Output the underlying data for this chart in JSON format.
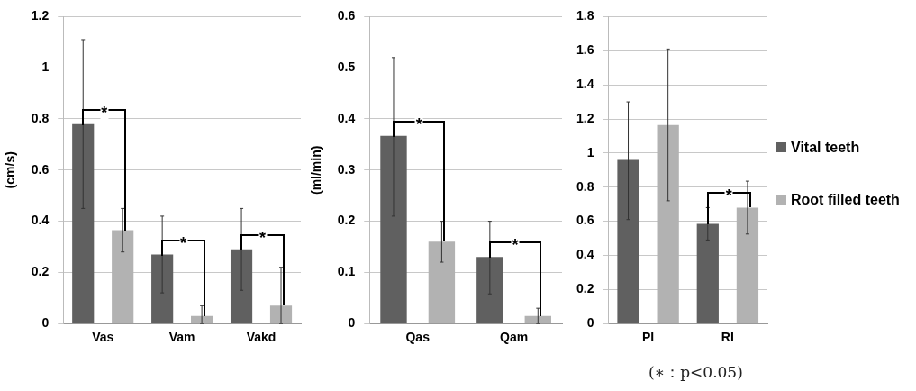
{
  "chart_data": [
    {
      "type": "bar",
      "ylabel": "(cm/s)",
      "categories": [
        "Vas",
        "Vam",
        "Vakd"
      ],
      "ylim": [
        0,
        1.2
      ],
      "yticks": [
        0,
        0.2,
        0.4,
        0.6,
        0.8,
        1,
        1.2
      ],
      "grid": "y",
      "legend": false,
      "series": [
        {
          "color": "#606060",
          "values": [
            0.78,
            0.27,
            0.29
          ],
          "errors": [
            [
              0.45,
              1.11
            ],
            [
              0.12,
              0.42
            ],
            [
              0.13,
              0.45
            ]
          ]
        },
        {
          "color": "#b2b2b2",
          "values": [
            0.365,
            0.03,
            0.07
          ],
          "errors": [
            [
              0.28,
              0.45
            ],
            [
              0,
              0.07
            ],
            [
              0,
              0.22
            ]
          ]
        }
      ],
      "annotations": [
        {
          "text": "*",
          "x": "Vas"
        },
        {
          "text": "*",
          "x": "Vam"
        },
        {
          "text": "*",
          "x": "Vakd"
        }
      ]
    },
    {
      "type": "bar",
      "ylabel": "(ml/min)",
      "categories": [
        "Qas",
        "Qam"
      ],
      "ylim": [
        0,
        0.6
      ],
      "yticks": [
        0,
        0.1,
        0.2,
        0.3,
        0.4,
        0.5,
        0.6
      ],
      "grid": "y",
      "legend": false,
      "series": [
        {
          "color": "#606060",
          "values": [
            0.367,
            0.13
          ],
          "errors": [
            [
              0.21,
              0.52
            ],
            [
              0.058,
              0.2
            ]
          ]
        },
        {
          "color": "#b2b2b2",
          "values": [
            0.16,
            0.015
          ],
          "errors": [
            [
              0.12,
              0.2
            ],
            [
              0,
              0.03
            ]
          ]
        }
      ],
      "annotations": [
        {
          "text": "*",
          "x": "Qas"
        },
        {
          "text": "*",
          "x": "Qam"
        }
      ]
    },
    {
      "type": "bar",
      "categories": [
        "PI",
        "RI"
      ],
      "ylim": [
        0,
        1.8
      ],
      "yticks": [
        0,
        0.2,
        0.4,
        0.6,
        0.8,
        1,
        1.2,
        1.4,
        1.6,
        1.8
      ],
      "grid": "y",
      "legend": "right",
      "series": [
        {
          "name": "Vital teeth",
          "color": "#606060",
          "values": [
            0.96,
            0.585
          ],
          "errors": [
            [
              0.61,
              1.3
            ],
            [
              0.49,
              0.68
            ]
          ]
        },
        {
          "name": "Root filled teeth",
          "color": "#b2b2b2",
          "values": [
            1.165,
            0.68
          ],
          "errors": [
            [
              0.72,
              1.61
            ],
            [
              0.525,
              0.835
            ]
          ]
        }
      ],
      "annotations": [
        {
          "text": "*",
          "x": "RI"
        },
        "(∗：p<0.05)"
      ]
    }
  ]
}
